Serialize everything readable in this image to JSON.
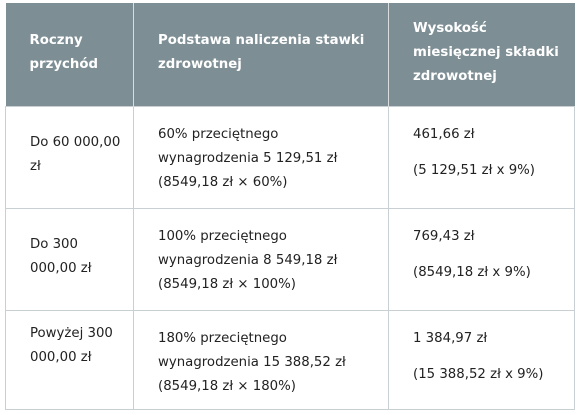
{
  "table": {
    "headers": [
      "Roczny przychód",
      "Podstawa naliczenia stawki zdrowotnej",
      "Wysokość miesięcznej składki zdrowotnej"
    ],
    "rows": [
      {
        "income": "Do 60 000,00 zł",
        "basis": "60% przeciętnego wynagrodzenia 5 129,51 zł (8549,18 zł × 60%)",
        "amount": "461,66 zł",
        "calc": "(5 129,51 zł x 9%)"
      },
      {
        "income": "Do 300 000,00 zł",
        "basis": "100% przeciętnego wynagrodzenia 8 549,18 zł (8549,18 zł × 100%)",
        "amount": "769,43 zł",
        "calc": "(8549,18 zł x 9%)"
      },
      {
        "income": "Powyżej 300 000,00 zł",
        "basis": "180% przeciętnego wynagrodzenia 15 388,52 zł (8549,18 zł × 180%)",
        "amount": "1 384,97 zł",
        "calc": "(15 388,52 zł x 9%)"
      }
    ]
  }
}
